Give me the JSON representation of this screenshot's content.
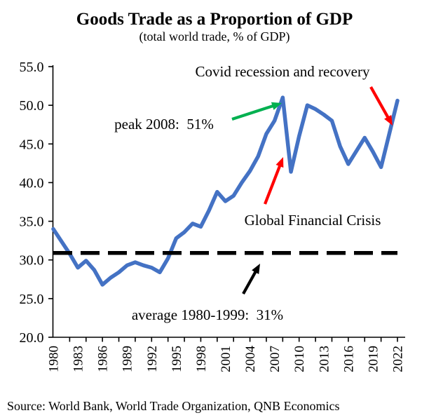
{
  "chart_data": {
    "type": "line",
    "title": "Goods Trade as a Proportion of GDP",
    "subtitle": "(total world trade, % of GDP)",
    "source": "Source: World Bank, World Trade Organization, QNB Economics",
    "xlabel": "",
    "ylabel": "",
    "ylim": [
      20,
      55
    ],
    "grid": false,
    "legend": "none",
    "y_ticks": [
      55,
      50,
      45,
      40,
      35,
      30,
      25,
      20
    ],
    "y_tick_labels": [
      "55.0",
      "50.0",
      "45.0",
      "40.0",
      "35.0",
      "30.0",
      "25.0",
      "20.0"
    ],
    "x_tick_labels": [
      "1980",
      "1983",
      "1986",
      "1989",
      "1992",
      "1995",
      "1998",
      "2001",
      "2004",
      "2007",
      "2010",
      "2013",
      "2016",
      "2019",
      "2022"
    ],
    "x": [
      1980,
      1981,
      1982,
      1983,
      1984,
      1985,
      1986,
      1987,
      1988,
      1989,
      1990,
      1991,
      1992,
      1993,
      1994,
      1995,
      1996,
      1997,
      1998,
      1999,
      2000,
      2001,
      2002,
      2003,
      2004,
      2005,
      2006,
      2007,
      2008,
      2009,
      2010,
      2011,
      2012,
      2013,
      2014,
      2015,
      2016,
      2017,
      2018,
      2019,
      2020,
      2021,
      2022
    ],
    "series": [
      {
        "name": "Goods trade, % of GDP",
        "color": "#4472C4",
        "values": [
          34.0,
          32.4,
          30.8,
          29.0,
          29.9,
          28.7,
          26.8,
          27.7,
          28.4,
          29.3,
          29.7,
          29.3,
          29.0,
          28.4,
          30.2,
          32.8,
          33.6,
          34.7,
          34.3,
          36.4,
          38.8,
          37.6,
          38.3,
          40.0,
          41.5,
          43.4,
          46.3,
          48.0,
          51.0,
          41.4,
          46.0,
          50.0,
          49.5,
          48.8,
          48.0,
          44.7,
          42.4,
          44.1,
          45.8,
          44.0,
          42.0,
          46.3,
          50.6
        ]
      }
    ],
    "reference_line": {
      "value": 30.9,
      "style": "dashed",
      "color": "#000000"
    },
    "annotations": [
      {
        "id": "peak-2008",
        "text": "peak 2008:  51%",
        "arrow_color": "#00B050"
      },
      {
        "id": "covid",
        "text": "Covid recession and recovery",
        "arrow_color": "#FF0000"
      },
      {
        "id": "gfc",
        "text": "Global Financial Crisis",
        "arrow_color": "#FF0000"
      },
      {
        "id": "average",
        "text": "average 1980-1999:  31%",
        "arrow_color": "#000000"
      }
    ]
  }
}
